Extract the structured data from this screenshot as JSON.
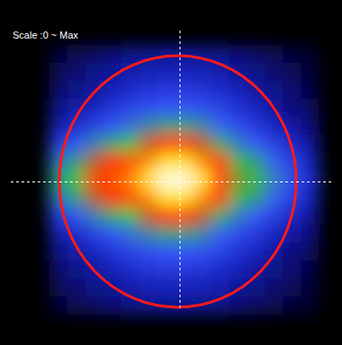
{
  "chart_data": {
    "type": "heatmap",
    "annotations": [
      "Scale :0 ~ Max"
    ],
    "color_range": [
      0,
      100
    ],
    "cells": [
      [
        4,
        6,
        7,
        9,
        11,
        12,
        13,
        13,
        12,
        11,
        9,
        7,
        6,
        4,
        3
      ],
      [
        6,
        8,
        11,
        13,
        16,
        17,
        18,
        18,
        17,
        16,
        13,
        11,
        8,
        6,
        4
      ],
      [
        8,
        11,
        14,
        18,
        21,
        24,
        25,
        25,
        24,
        21,
        18,
        14,
        11,
        8,
        5
      ],
      [
        11,
        15,
        19,
        24,
        28,
        31,
        33,
        33,
        31,
        28,
        23,
        19,
        14,
        10,
        7
      ],
      [
        16,
        21,
        27,
        33,
        38,
        42,
        45,
        45,
        42,
        36,
        30,
        25,
        19,
        14,
        10
      ],
      [
        26,
        32,
        41,
        47,
        52,
        59,
        64,
        64,
        59,
        48,
        40,
        34,
        27,
        20,
        14
      ],
      [
        39,
        45,
        58,
        64,
        70,
        79,
        87,
        87,
        79,
        62,
        50,
        45,
        36,
        27,
        19
      ],
      [
        45,
        52,
        66,
        72,
        78,
        88,
        98,
        98,
        88,
        68,
        55,
        50,
        40,
        30,
        22
      ],
      [
        39,
        45,
        58,
        64,
        70,
        79,
        87,
        87,
        79,
        62,
        50,
        45,
        36,
        27,
        19
      ],
      [
        26,
        32,
        41,
        47,
        52,
        59,
        64,
        64,
        59,
        48,
        40,
        34,
        27,
        20,
        14
      ],
      [
        16,
        21,
        27,
        33,
        38,
        42,
        45,
        45,
        42,
        36,
        30,
        25,
        19,
        14,
        10
      ],
      [
        11,
        15,
        19,
        24,
        28,
        31,
        33,
        33,
        31,
        28,
        23,
        19,
        14,
        10,
        7
      ],
      [
        8,
        11,
        14,
        18,
        21,
        24,
        25,
        25,
        24,
        21,
        18,
        14,
        11,
        8,
        5
      ],
      [
        6,
        8,
        11,
        13,
        16,
        17,
        18,
        18,
        17,
        16,
        13,
        11,
        8,
        6,
        4
      ],
      [
        4,
        6,
        7,
        9,
        11,
        12,
        13,
        13,
        12,
        11,
        9,
        7,
        6,
        4,
        3
      ]
    ]
  }
}
